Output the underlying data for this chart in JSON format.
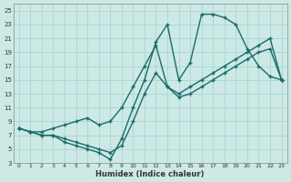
{
  "xlabel": "Humidex (Indice chaleur)",
  "bg_color": "#cce9e5",
  "grid_color": "#b0d8d4",
  "line_color": "#1a6b6b",
  "xlim": [
    -0.5,
    23.5
  ],
  "ylim": [
    3,
    26
  ],
  "xticks": [
    0,
    1,
    2,
    3,
    4,
    5,
    6,
    7,
    8,
    9,
    10,
    11,
    12,
    13,
    14,
    15,
    16,
    17,
    18,
    19,
    20,
    21,
    22,
    23
  ],
  "yticks": [
    3,
    5,
    7,
    9,
    11,
    13,
    15,
    17,
    19,
    21,
    23,
    25
  ],
  "line1_x": [
    0,
    1,
    2,
    3,
    4,
    5,
    6,
    7,
    8,
    9,
    10,
    11,
    12,
    13,
    14,
    15,
    16,
    17,
    18,
    19,
    20,
    21,
    22,
    23
  ],
  "line1_y": [
    8,
    7.5,
    7.5,
    8,
    8.5,
    9,
    9.5,
    8.5,
    9,
    11,
    14,
    17,
    20,
    14,
    13,
    14,
    15,
    16,
    17,
    18,
    19,
    20,
    21,
    15
  ],
  "line2_x": [
    0,
    1,
    2,
    3,
    4,
    5,
    6,
    7,
    8,
    9,
    10,
    11,
    12,
    13,
    14,
    15,
    16,
    17,
    18,
    19,
    20,
    21,
    22,
    23
  ],
  "line2_y": [
    8,
    7.5,
    7,
    7,
    6,
    5.5,
    5,
    4.5,
    3.5,
    6.5,
    11,
    15,
    20.5,
    23,
    15,
    17.5,
    24.5,
    24.5,
    24,
    23,
    19.5,
    17,
    15.5,
    15
  ],
  "line3_x": [
    0,
    1,
    2,
    3,
    4,
    5,
    6,
    7,
    8,
    9,
    10,
    11,
    12,
    13,
    14,
    15,
    16,
    17,
    18,
    19,
    20,
    21,
    22,
    23
  ],
  "line3_y": [
    8,
    7.5,
    7,
    7,
    6.5,
    6,
    5.5,
    5,
    4.5,
    5.5,
    9,
    13,
    16,
    14,
    12.5,
    13,
    14,
    15,
    16,
    17,
    18,
    19,
    19.5,
    15
  ],
  "marker_size": 2.5,
  "line_width": 1.0
}
